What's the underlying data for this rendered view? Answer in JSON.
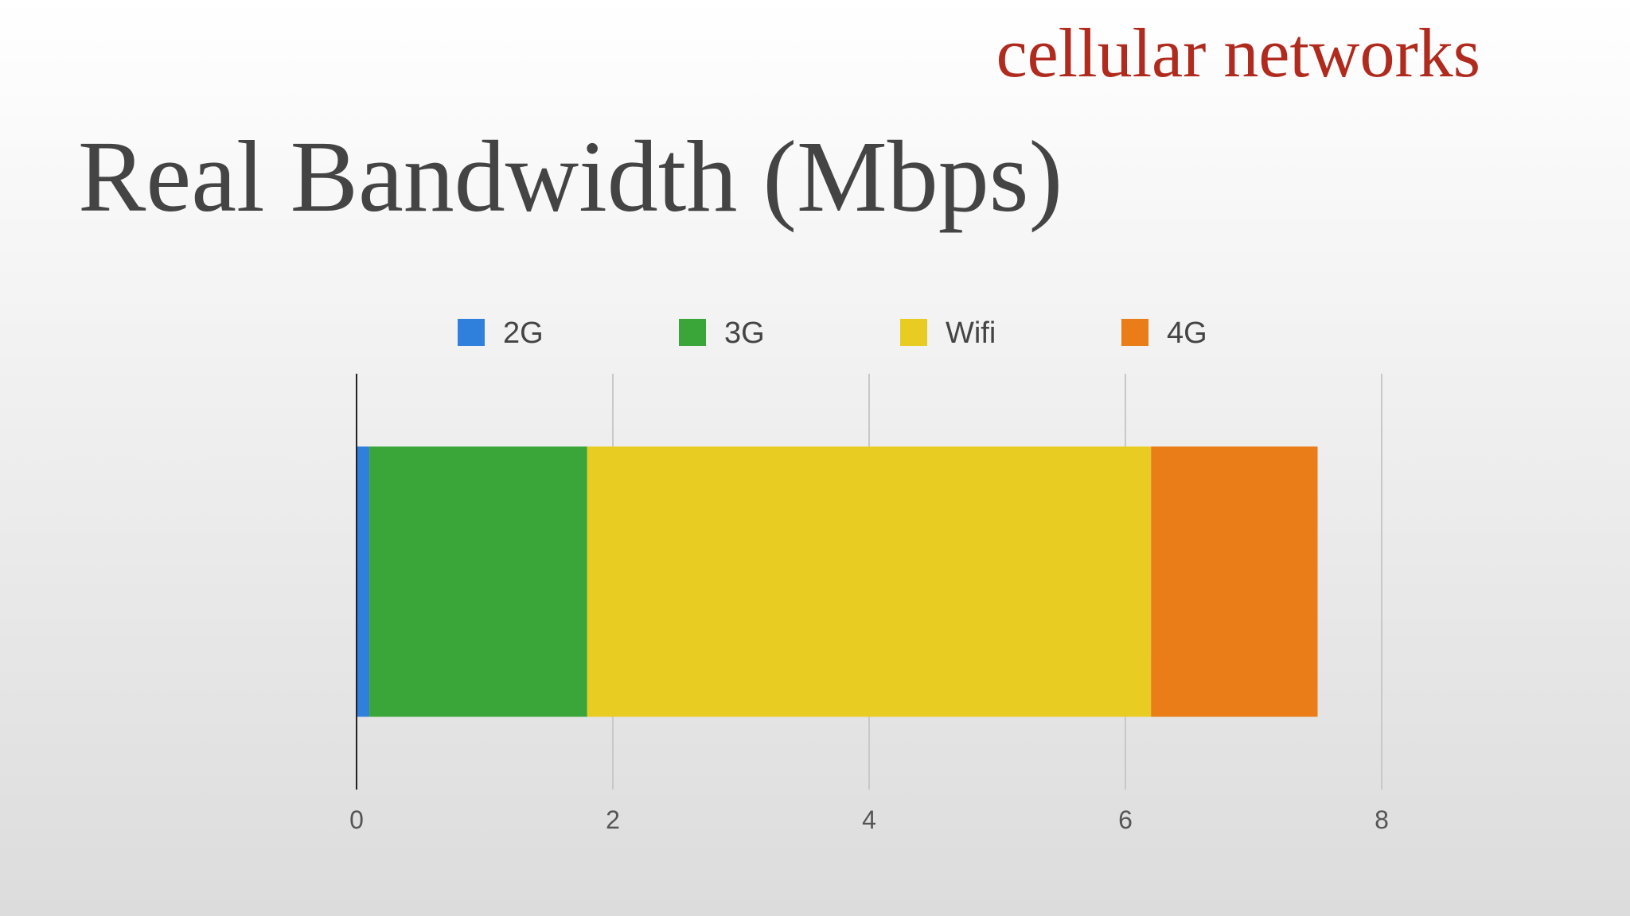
{
  "slide": {
    "section": "cellular networks"
  },
  "chart_data": {
    "type": "stacked-bar-horizontal",
    "title": "Real Bandwidth (Mbps)",
    "categories": [
      null
    ],
    "series": [
      {
        "name": "2G",
        "color": "#2f7fdc",
        "values": [
          0.1
        ]
      },
      {
        "name": "3G",
        "color": "#3aa63a",
        "values": [
          1.7
        ]
      },
      {
        "name": "Wifi",
        "color": "#e8cc22",
        "values": [
          4.4
        ]
      },
      {
        "name": "4G",
        "color": "#ea7d18",
        "values": [
          1.3
        ]
      }
    ],
    "xlim": [
      0,
      8
    ],
    "xticks": [
      0,
      2,
      4,
      6,
      8
    ],
    "grid": true,
    "legend": "top"
  }
}
